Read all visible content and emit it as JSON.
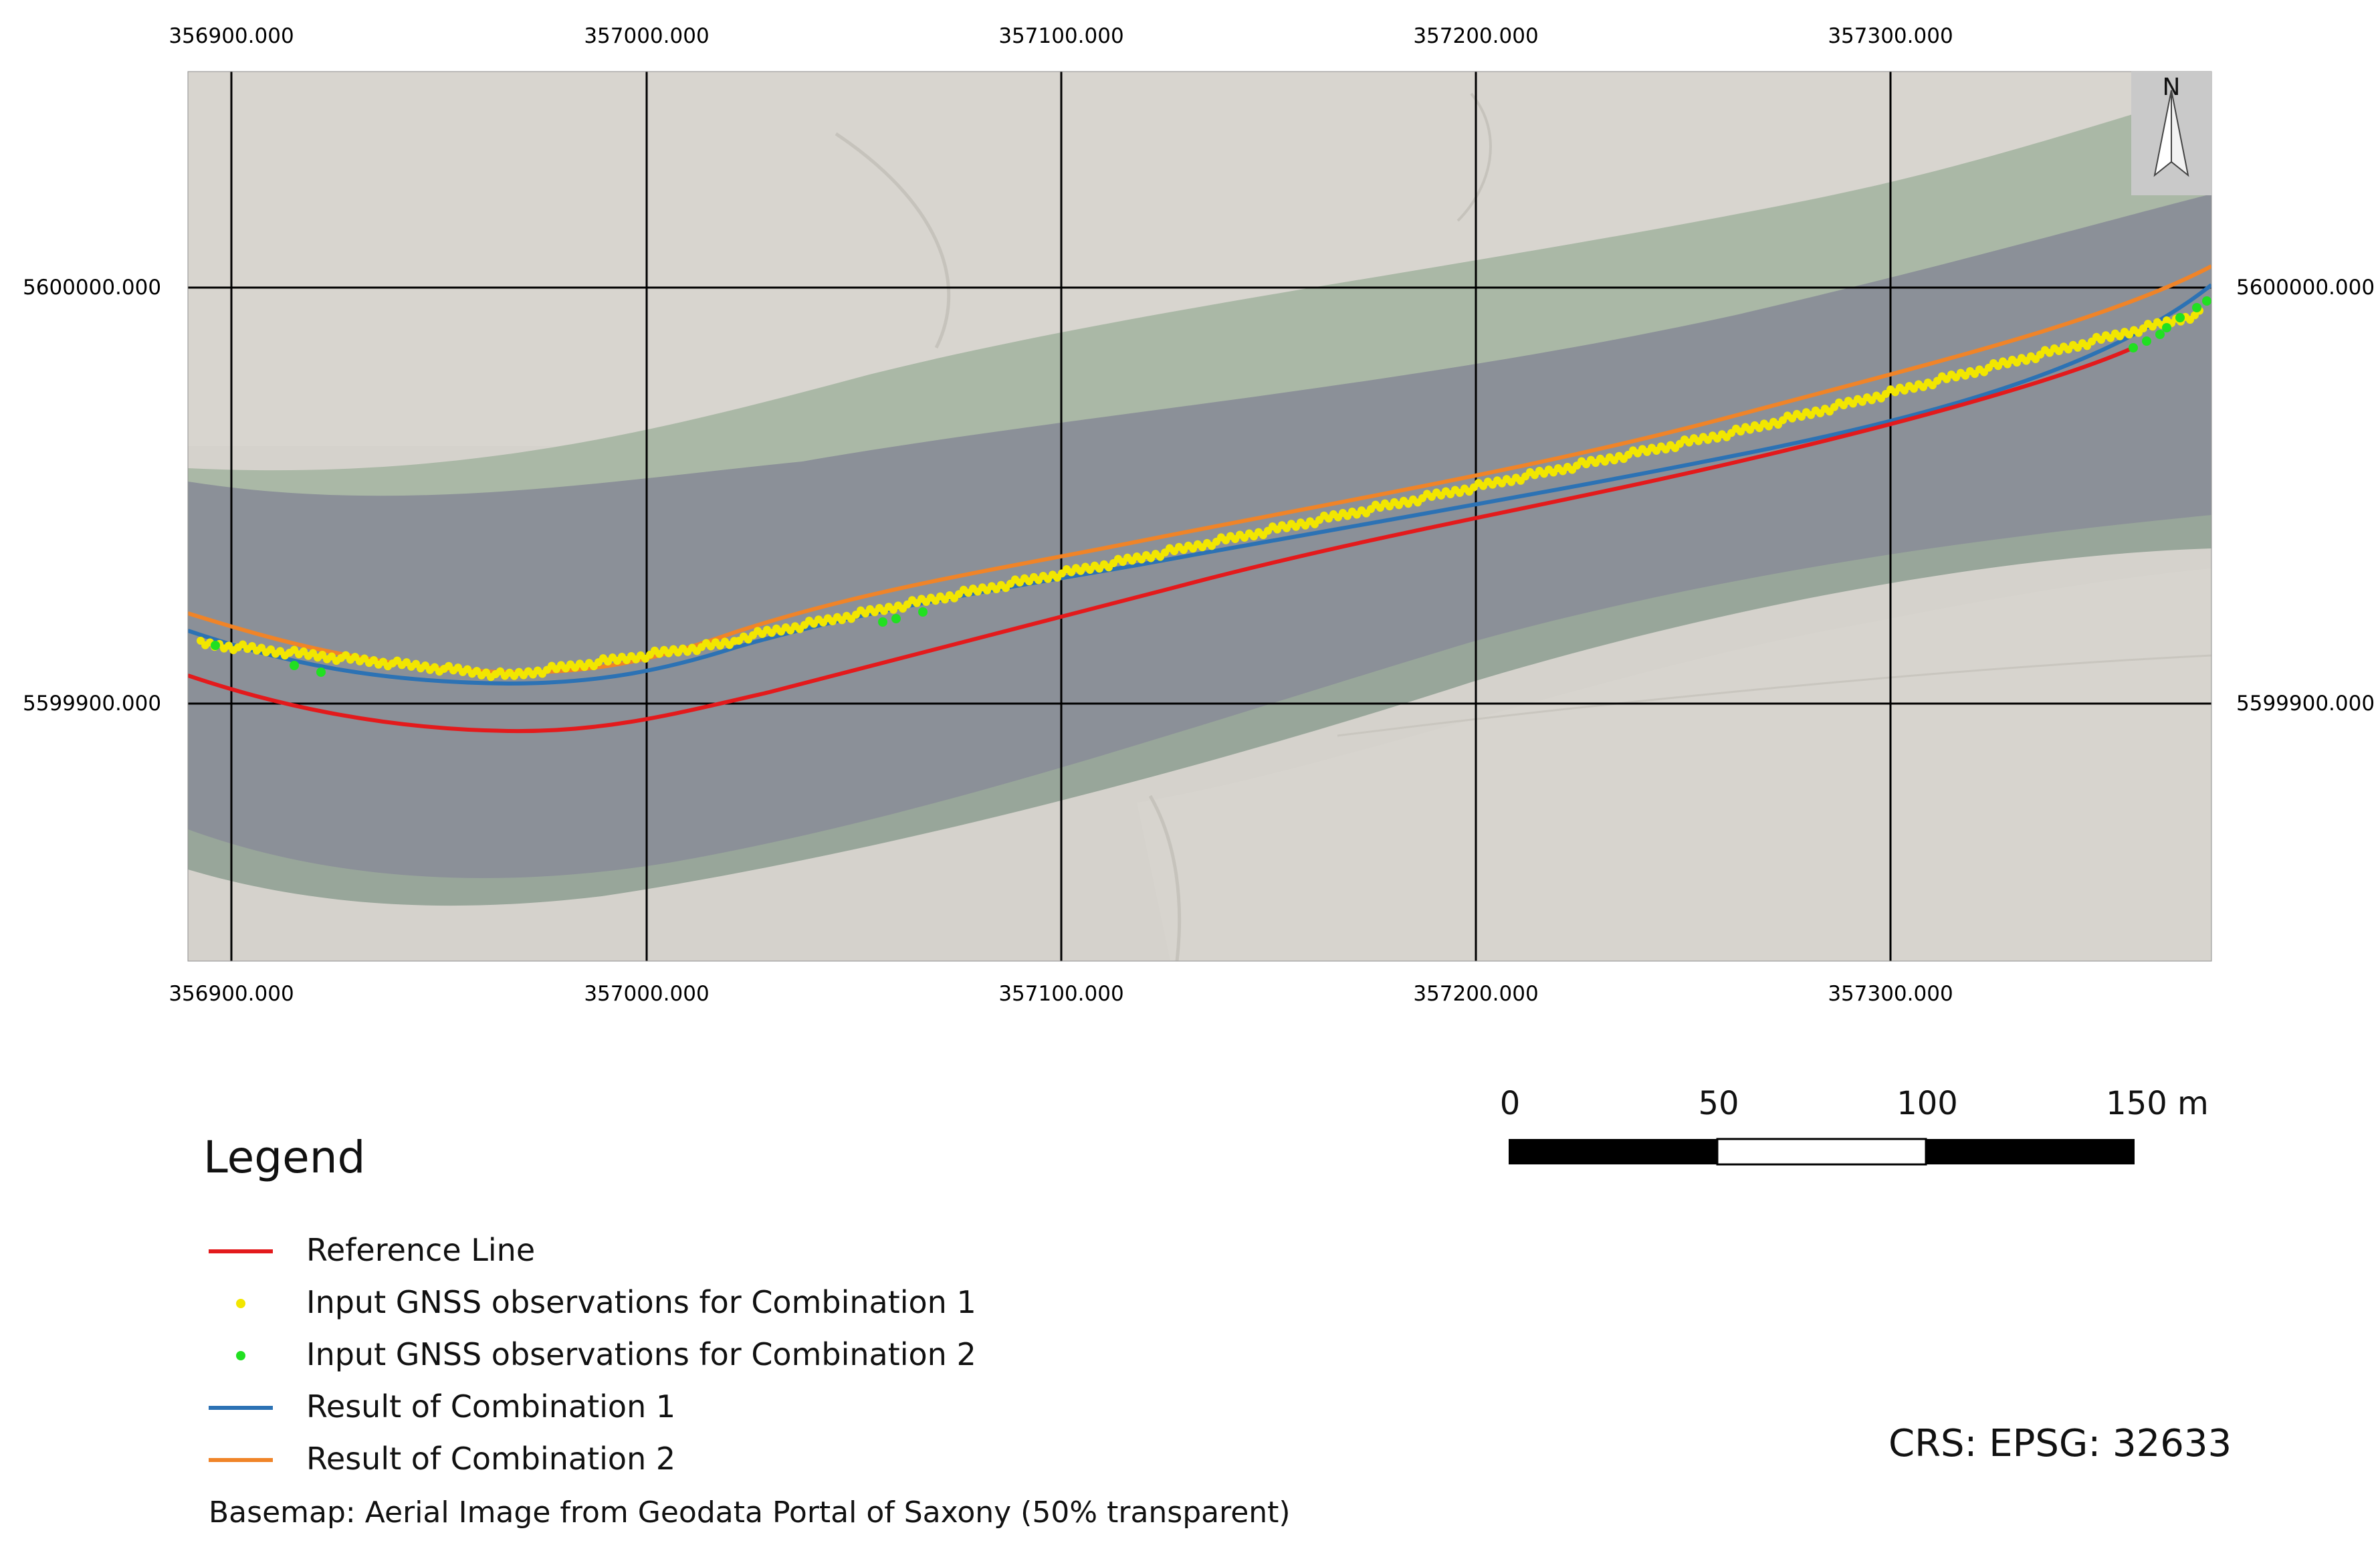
{
  "map": {
    "grid": {
      "x_labels": [
        "356900.000",
        "357000.000",
        "357100.000",
        "357200.000",
        "357300.000"
      ],
      "y_labels": [
        "5600000.000",
        "5599900.000"
      ]
    },
    "north_arrow": {
      "label": "N"
    },
    "scale_bar": {
      "labels": [
        "0",
        "50",
        "100",
        "150 m"
      ],
      "unit": "m"
    },
    "legend": {
      "title": "Legend",
      "items": [
        {
          "label": "Reference Line",
          "type": "line",
          "color": "#e31a1c"
        },
        {
          "label": "Input GNSS observations for Combination 1",
          "type": "point",
          "color": "#f2e600"
        },
        {
          "label": "Input GNSS observations for Combination 2",
          "type": "point",
          "color": "#21e021"
        },
        {
          "label": "Result of Combination 1",
          "type": "line",
          "color": "#2c72b4"
        },
        {
          "label": "Result of Combination 2",
          "type": "line",
          "color": "#f08428"
        }
      ]
    },
    "basemap_note": "Basemap: Aerial Image from Geodata Portal of Saxony (50% transparent)",
    "crs": "CRS: EPSG: 32633",
    "colors": {
      "field": "#d6d3cc",
      "water": "#8a8f96",
      "vegetation": "#a9b8a4",
      "grid": "#000000"
    }
  }
}
